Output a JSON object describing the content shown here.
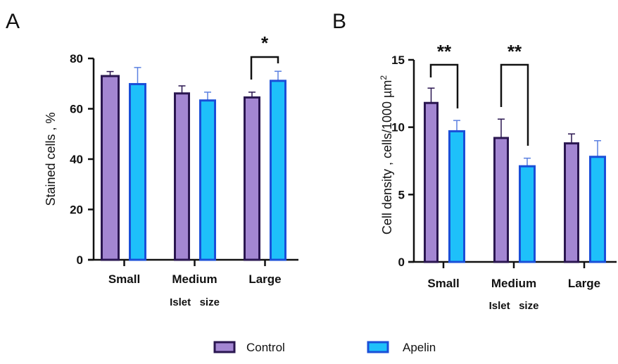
{
  "colors": {
    "control_fill": "#a386d2",
    "control_stroke": "#2a1650",
    "apelin_fill": "#1ec0fa",
    "apelin_stroke": "#1a4fd8",
    "apelin_err": "#5b80e0",
    "axis": "#111111"
  },
  "legend": [
    {
      "name": "Control"
    },
    {
      "name": "Apelin"
    }
  ],
  "chart_data": [
    {
      "panel": "A",
      "type": "bar",
      "categories": [
        "Small",
        "Medium",
        "Large"
      ],
      "xlabel": "Islet   size",
      "ylabel": "Stained cells , %",
      "ylim": [
        0,
        80
      ],
      "yticks": [
        0,
        20,
        40,
        60,
        80
      ],
      "series": [
        {
          "name": "Control",
          "values": [
            73.0,
            66.1,
            64.5
          ],
          "err_upper": [
            74.8,
            69.1,
            66.6
          ]
        },
        {
          "name": "Apelin",
          "values": [
            69.8,
            63.3,
            71.1
          ],
          "err_upper": [
            76.4,
            66.6,
            74.9
          ]
        }
      ],
      "annotations": [
        {
          "category": "Large",
          "label": "*"
        }
      ]
    },
    {
      "panel": "B",
      "type": "bar",
      "categories": [
        "Small",
        "Medium",
        "Large"
      ],
      "xlabel": "Islet   size",
      "ylabel": "Cell density , cells/1000 µm",
      "ylabel_sup": "2",
      "ylim": [
        0,
        15
      ],
      "yticks": [
        0,
        5,
        10,
        15
      ],
      "series": [
        {
          "name": "Control",
          "values": [
            11.8,
            9.2,
            8.8
          ],
          "err_upper": [
            12.9,
            10.6,
            9.5
          ]
        },
        {
          "name": "Apelin",
          "values": [
            9.7,
            7.1,
            7.8
          ],
          "err_upper": [
            10.5,
            7.7,
            9.0
          ]
        }
      ],
      "annotations": [
        {
          "category": "Small",
          "label": "**"
        },
        {
          "category": "Medium",
          "label": "**"
        }
      ]
    }
  ]
}
